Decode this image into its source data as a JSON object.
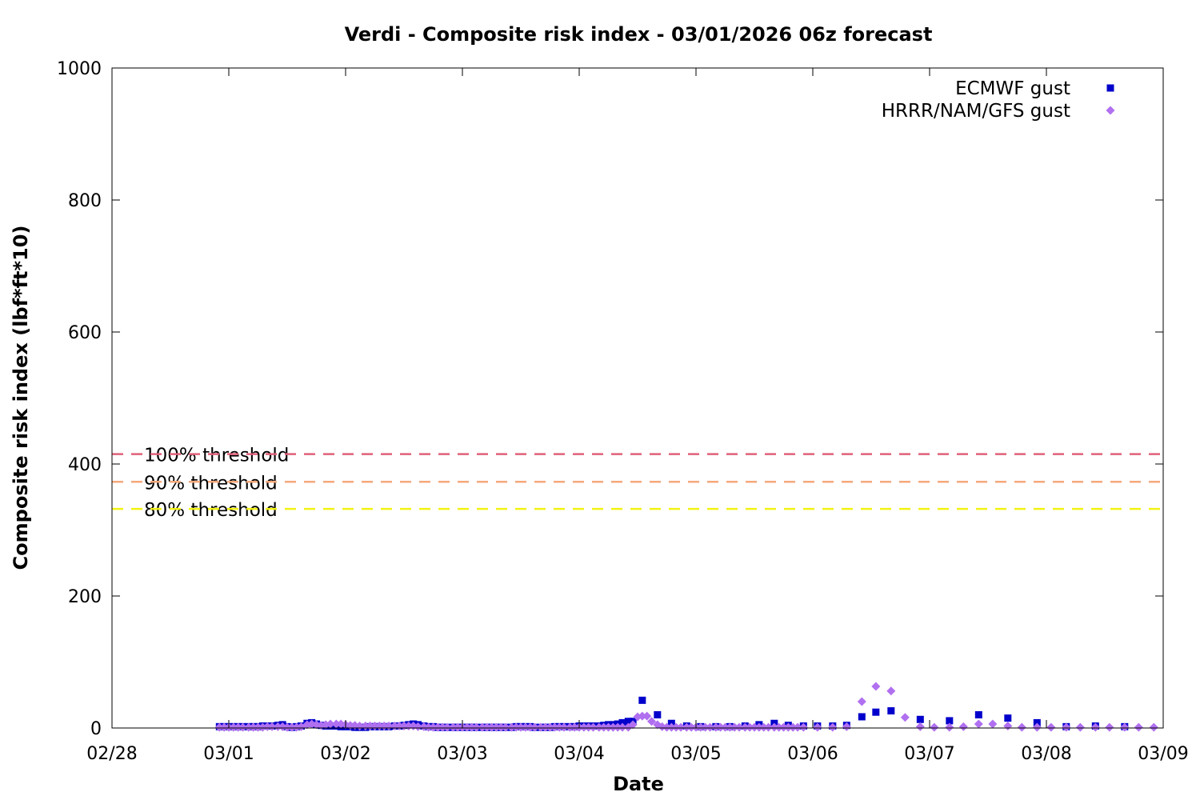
{
  "chart_data": {
    "type": "scatter",
    "title": "Verdi - Composite risk index - 03/01/2026 06z forecast",
    "xlabel": "Date",
    "ylabel": "Composite risk index (lbf*ft*10)",
    "x_ticks": [
      "02/28",
      "03/01",
      "03/02",
      "03/03",
      "03/04",
      "03/05",
      "03/06",
      "03/07",
      "03/08",
      "03/09"
    ],
    "x_range_days": [
      0,
      9
    ],
    "ylim": [
      0,
      1000
    ],
    "y_ticks": [
      "0",
      "200",
      "400",
      "600",
      "800",
      "1000"
    ],
    "grid": false,
    "legend_position": "top-right",
    "thresholds": [
      {
        "label": "100% threshold",
        "value": 415,
        "color": "#e0607a"
      },
      {
        "label": "90% threshold",
        "value": 373,
        "color": "#f6a97c"
      },
      {
        "label": "80% threshold",
        "value": 332,
        "color": "#f2f214"
      }
    ],
    "series": [
      {
        "name": "ECMWF gust",
        "color": "#0000cc",
        "marker": "square",
        "points": [
          [
            0.92,
            2
          ],
          [
            0.96,
            2
          ],
          [
            1.0,
            2
          ],
          [
            1.04,
            2
          ],
          [
            1.08,
            2
          ],
          [
            1.12,
            2
          ],
          [
            1.17,
            2
          ],
          [
            1.21,
            2
          ],
          [
            1.25,
            2
          ],
          [
            1.29,
            3
          ],
          [
            1.33,
            3
          ],
          [
            1.37,
            3
          ],
          [
            1.42,
            4
          ],
          [
            1.46,
            5
          ],
          [
            1.5,
            2
          ],
          [
            1.54,
            1
          ],
          [
            1.58,
            2
          ],
          [
            1.62,
            3
          ],
          [
            1.67,
            7
          ],
          [
            1.71,
            8
          ],
          [
            1.75,
            6
          ],
          [
            1.79,
            4
          ],
          [
            1.83,
            3
          ],
          [
            1.87,
            3
          ],
          [
            1.92,
            3
          ],
          [
            1.96,
            2
          ],
          [
            2.0,
            2
          ],
          [
            2.04,
            2
          ],
          [
            2.08,
            1
          ],
          [
            2.12,
            1
          ],
          [
            2.17,
            1
          ],
          [
            2.21,
            2
          ],
          [
            2.25,
            2
          ],
          [
            2.29,
            2
          ],
          [
            2.33,
            2
          ],
          [
            2.37,
            2
          ],
          [
            2.42,
            3
          ],
          [
            2.46,
            3
          ],
          [
            2.5,
            4
          ],
          [
            2.54,
            5
          ],
          [
            2.58,
            6
          ],
          [
            2.62,
            5
          ],
          [
            2.67,
            3
          ],
          [
            2.71,
            2
          ],
          [
            2.75,
            2
          ],
          [
            2.79,
            1
          ],
          [
            2.83,
            1
          ],
          [
            2.87,
            1
          ],
          [
            2.92,
            1
          ],
          [
            2.96,
            1
          ],
          [
            3.0,
            1
          ],
          [
            3.04,
            1
          ],
          [
            3.08,
            1
          ],
          [
            3.12,
            1
          ],
          [
            3.17,
            1
          ],
          [
            3.21,
            1
          ],
          [
            3.25,
            1
          ],
          [
            3.29,
            1
          ],
          [
            3.33,
            1
          ],
          [
            3.37,
            1
          ],
          [
            3.42,
            1
          ],
          [
            3.46,
            2
          ],
          [
            3.5,
            2
          ],
          [
            3.54,
            2
          ],
          [
            3.58,
            2
          ],
          [
            3.62,
            1
          ],
          [
            3.67,
            1
          ],
          [
            3.71,
            1
          ],
          [
            3.75,
            1
          ],
          [
            3.79,
            2
          ],
          [
            3.83,
            2
          ],
          [
            3.87,
            2
          ],
          [
            3.92,
            2
          ],
          [
            3.96,
            2
          ],
          [
            4.0,
            3
          ],
          [
            4.04,
            3
          ],
          [
            4.08,
            3
          ],
          [
            4.12,
            3
          ],
          [
            4.17,
            3
          ],
          [
            4.21,
            4
          ],
          [
            4.25,
            5
          ],
          [
            4.29,
            5
          ],
          [
            4.33,
            6
          ],
          [
            4.37,
            8
          ],
          [
            4.42,
            10
          ],
          [
            4.46,
            10
          ],
          [
            4.54,
            42
          ],
          [
            4.67,
            20
          ],
          [
            4.79,
            7
          ],
          [
            4.92,
            3
          ],
          [
            5.04,
            2
          ],
          [
            5.17,
            2
          ],
          [
            5.29,
            2
          ],
          [
            5.42,
            3
          ],
          [
            5.54,
            5
          ],
          [
            5.67,
            7
          ],
          [
            5.79,
            4
          ],
          [
            5.92,
            3
          ],
          [
            6.04,
            3
          ],
          [
            6.17,
            3
          ],
          [
            6.29,
            4
          ],
          [
            6.42,
            17
          ],
          [
            6.54,
            24
          ],
          [
            6.67,
            26
          ],
          [
            6.92,
            13
          ],
          [
            7.17,
            11
          ],
          [
            7.42,
            20
          ],
          [
            7.67,
            15
          ],
          [
            7.92,
            8
          ],
          [
            8.17,
            2
          ],
          [
            8.42,
            3
          ],
          [
            8.67,
            2
          ]
        ]
      },
      {
        "name": "HRRR/NAM/GFS gust",
        "color": "#b070f0",
        "marker": "diamond",
        "points": [
          [
            0.92,
            1
          ],
          [
            0.96,
            1
          ],
          [
            1.0,
            1
          ],
          [
            1.04,
            1
          ],
          [
            1.08,
            1
          ],
          [
            1.12,
            1
          ],
          [
            1.17,
            1
          ],
          [
            1.21,
            1
          ],
          [
            1.25,
            1
          ],
          [
            1.29,
            1
          ],
          [
            1.33,
            2
          ],
          [
            1.37,
            2
          ],
          [
            1.42,
            2
          ],
          [
            1.46,
            2
          ],
          [
            1.5,
            1
          ],
          [
            1.54,
            1
          ],
          [
            1.58,
            1
          ],
          [
            1.62,
            2
          ],
          [
            1.67,
            5
          ],
          [
            1.71,
            6
          ],
          [
            1.75,
            5
          ],
          [
            1.79,
            4
          ],
          [
            1.83,
            5
          ],
          [
            1.87,
            6
          ],
          [
            1.92,
            6
          ],
          [
            1.96,
            6
          ],
          [
            2.0,
            5
          ],
          [
            2.04,
            4
          ],
          [
            2.08,
            4
          ],
          [
            2.12,
            3
          ],
          [
            2.17,
            3
          ],
          [
            2.21,
            3
          ],
          [
            2.25,
            3
          ],
          [
            2.29,
            3
          ],
          [
            2.33,
            3
          ],
          [
            2.37,
            3
          ],
          [
            2.42,
            3
          ],
          [
            2.46,
            3
          ],
          [
            2.5,
            3
          ],
          [
            2.54,
            3
          ],
          [
            2.58,
            3
          ],
          [
            2.62,
            2
          ],
          [
            2.67,
            2
          ],
          [
            2.71,
            1
          ],
          [
            2.75,
            1
          ],
          [
            2.79,
            1
          ],
          [
            2.83,
            1
          ],
          [
            2.87,
            1
          ],
          [
            2.92,
            1
          ],
          [
            2.96,
            1
          ],
          [
            3.0,
            1
          ],
          [
            3.04,
            1
          ],
          [
            3.08,
            1
          ],
          [
            3.12,
            1
          ],
          [
            3.17,
            1
          ],
          [
            3.21,
            1
          ],
          [
            3.25,
            1
          ],
          [
            3.29,
            1
          ],
          [
            3.33,
            1
          ],
          [
            3.37,
            1
          ],
          [
            3.42,
            1
          ],
          [
            3.46,
            1
          ],
          [
            3.5,
            1
          ],
          [
            3.54,
            1
          ],
          [
            3.58,
            1
          ],
          [
            3.62,
            1
          ],
          [
            3.67,
            1
          ],
          [
            3.71,
            1
          ],
          [
            3.75,
            1
          ],
          [
            3.79,
            1
          ],
          [
            3.83,
            1
          ],
          [
            3.87,
            1
          ],
          [
            3.92,
            1
          ],
          [
            3.96,
            1
          ],
          [
            4.0,
            1
          ],
          [
            4.04,
            1
          ],
          [
            4.08,
            1
          ],
          [
            4.12,
            1
          ],
          [
            4.17,
            1
          ],
          [
            4.21,
            1
          ],
          [
            4.25,
            1
          ],
          [
            4.29,
            1
          ],
          [
            4.33,
            1
          ],
          [
            4.37,
            1
          ],
          [
            4.42,
            1
          ],
          [
            4.46,
            5
          ],
          [
            4.5,
            17
          ],
          [
            4.54,
            18
          ],
          [
            4.58,
            18
          ],
          [
            4.62,
            10
          ],
          [
            4.67,
            5
          ],
          [
            4.71,
            2
          ],
          [
            4.75,
            1
          ],
          [
            4.79,
            1
          ],
          [
            4.83,
            1
          ],
          [
            4.87,
            1
          ],
          [
            4.92,
            1
          ],
          [
            4.96,
            1
          ],
          [
            5.0,
            1
          ],
          [
            5.04,
            1
          ],
          [
            5.08,
            1
          ],
          [
            5.12,
            1
          ],
          [
            5.17,
            1
          ],
          [
            5.21,
            1
          ],
          [
            5.25,
            1
          ],
          [
            5.29,
            1
          ],
          [
            5.33,
            1
          ],
          [
            5.37,
            1
          ],
          [
            5.42,
            1
          ],
          [
            5.46,
            1
          ],
          [
            5.5,
            1
          ],
          [
            5.54,
            1
          ],
          [
            5.58,
            1
          ],
          [
            5.62,
            1
          ],
          [
            5.67,
            1
          ],
          [
            5.71,
            1
          ],
          [
            5.75,
            1
          ],
          [
            5.79,
            1
          ],
          [
            5.83,
            1
          ],
          [
            5.87,
            1
          ],
          [
            5.92,
            1
          ],
          [
            6.04,
            1
          ],
          [
            6.17,
            1
          ],
          [
            6.29,
            2
          ],
          [
            6.42,
            40
          ],
          [
            6.54,
            63
          ],
          [
            6.67,
            56
          ],
          [
            6.79,
            16
          ],
          [
            6.92,
            2
          ],
          [
            7.04,
            1
          ],
          [
            7.17,
            1
          ],
          [
            7.29,
            2
          ],
          [
            7.42,
            6
          ],
          [
            7.54,
            6
          ],
          [
            7.67,
            3
          ],
          [
            7.79,
            1
          ],
          [
            7.92,
            1
          ],
          [
            8.04,
            1
          ],
          [
            8.17,
            1
          ],
          [
            8.29,
            1
          ],
          [
            8.42,
            1
          ],
          [
            8.54,
            1
          ],
          [
            8.67,
            1
          ],
          [
            8.79,
            1
          ],
          [
            8.92,
            1
          ]
        ]
      }
    ]
  }
}
